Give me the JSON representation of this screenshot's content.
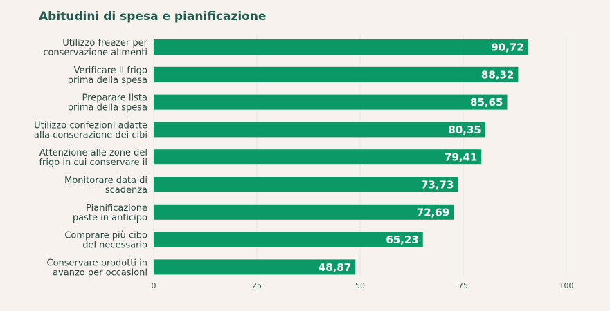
{
  "chart_data": {
    "type": "bar",
    "orientation": "horizontal",
    "title": "Abitudini di spesa e pianificazione",
    "categories": [
      [
        "Utilizzo freezer per",
        "conservazione alimenti"
      ],
      [
        "Verificare il frigo",
        "prima della spesa"
      ],
      [
        "Preparare lista",
        "prima della spesa"
      ],
      [
        "Utilizzo confezioni adatte",
        "alla conserazione dei cibi"
      ],
      [
        "Attenzione alle zone del",
        "frigo in cui conservare il"
      ],
      [
        "Monitorare data di",
        "scadenza"
      ],
      [
        "Pianificazione",
        "paste in anticipo"
      ],
      [
        "Comprare più cibo",
        "del necessario"
      ],
      [
        "Conservare prodotti in",
        "avanzo per occasioni"
      ]
    ],
    "values": [
      90.72,
      88.32,
      85.65,
      80.35,
      79.41,
      73.73,
      72.69,
      65.23,
      48.87
    ],
    "value_labels": [
      "90,72",
      "88,32",
      "85,65",
      "80,35",
      "79,41",
      "73,73",
      "72,69",
      "65,23",
      "48,87"
    ],
    "xlim": [
      0,
      100
    ],
    "xticks": [
      0,
      25,
      50,
      75,
      100
    ],
    "grid": "vertical",
    "bar_color": "#0b9a67"
  }
}
